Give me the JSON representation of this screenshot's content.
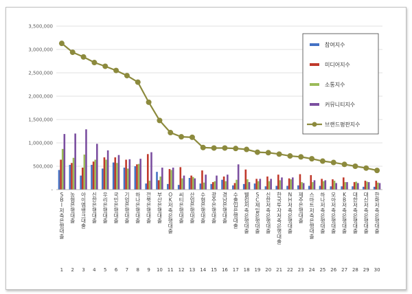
{
  "chart_data": {
    "type": "bar",
    "categories": [
      "SBI저축은행 대출",
      "농협은행 대출",
      "아이엠뱅크 대출",
      "신한은행 대출",
      "우리은행 대출",
      "국민은행 대출",
      "기업은행 대출",
      "하나은행 대출",
      "전북은행 대출",
      "부산은행 대출",
      "OK저축은행 대출",
      "씨티은행 대출",
      "산업은행 대출",
      "수협은행 대출",
      "광주은행 대출",
      "경남은행 대출",
      "수출입은행 대출",
      "웰컴저축은행 대출",
      "SC제일은행 대출",
      "신한저축은행 대출",
      "한국투자저축은행 대출",
      "NH저축은행 대출",
      "제주은행 대출",
      "스마트저축은행 대출",
      "하나저축은행 대출",
      "모아저축은행 대출",
      "KB저축은행 대출",
      "대한저축은행 대출",
      "대신저축은행 대출",
      "한화저축은행 대출"
    ],
    "index_numbers": [
      "1",
      "2",
      "3",
      "4",
      "5",
      "6",
      "7",
      "8",
      "9",
      "10",
      "11",
      "12",
      "13",
      "14",
      "15",
      "16",
      "17",
      "18",
      "19",
      "20",
      "21",
      "22",
      "23",
      "24",
      "25",
      "26",
      "27",
      "28",
      "29",
      "30"
    ],
    "series": [
      {
        "name": "참여지수",
        "color": "#4472c4",
        "values": [
          420000,
          530000,
          300000,
          530000,
          450000,
          580000,
          470000,
          500000,
          130000,
          380000,
          120000,
          100000,
          250000,
          130000,
          120000,
          210000,
          90000,
          120000,
          130000,
          70000,
          80000,
          80000,
          90000,
          80000,
          80000,
          70000,
          70000,
          70000,
          60000,
          60000
        ]
      },
      {
        "name": "미디어지수",
        "color": "#c0392b",
        "values": [
          640000,
          570000,
          470000,
          600000,
          690000,
          690000,
          640000,
          540000,
          760000,
          200000,
          440000,
          480000,
          300000,
          410000,
          160000,
          280000,
          140000,
          430000,
          230000,
          280000,
          320000,
          240000,
          330000,
          310000,
          230000,
          220000,
          260000,
          160000,
          190000,
          190000
        ]
      },
      {
        "name": "소통지수",
        "color": "#9bbb59",
        "values": [
          870000,
          680000,
          750000,
          640000,
          640000,
          570000,
          450000,
          550000,
          190000,
          280000,
          420000,
          240000,
          270000,
          150000,
          180000,
          180000,
          210000,
          220000,
          180000,
          180000,
          200000,
          220000,
          160000,
          160000,
          180000,
          190000,
          160000,
          170000,
          170000,
          150000
        ]
      },
      {
        "name": "커뮤니티지수",
        "color": "#7b4fa0",
        "values": [
          1190000,
          1200000,
          1290000,
          980000,
          840000,
          740000,
          650000,
          660000,
          800000,
          470000,
          470000,
          300000,
          240000,
          320000,
          300000,
          320000,
          540000,
          160000,
          230000,
          230000,
          260000,
          260000,
          140000,
          200000,
          200000,
          140000,
          160000,
          140000,
          160000,
          140000
        ]
      }
    ],
    "line_series": {
      "name": "브랜드평판지수",
      "color": "#8c8a3d",
      "values": [
        3130000,
        2940000,
        2840000,
        2720000,
        2640000,
        2550000,
        2440000,
        2300000,
        1870000,
        1480000,
        1220000,
        1130000,
        1120000,
        900000,
        890000,
        890000,
        880000,
        860000,
        800000,
        790000,
        760000,
        720000,
        700000,
        660000,
        610000,
        580000,
        540000,
        500000,
        460000,
        410000
      ]
    },
    "yticks": [
      "-",
      "500,000",
      "1,000,000",
      "1,500,000",
      "2,000,000",
      "2,500,000",
      "3,000,000",
      "3,500,000"
    ],
    "ylim": [
      0,
      3500000
    ],
    "grid": true,
    "legend_position": "right"
  }
}
